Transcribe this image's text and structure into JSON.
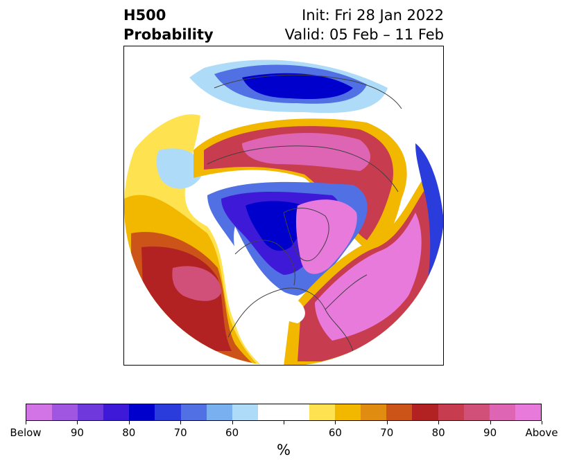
{
  "header": {
    "title_line1": "H500",
    "title_line2": "Probability",
    "init_text": "Init: Fri 28 Jan 2022",
    "valid_text": "Valid: 05 Feb – 11 Feb"
  },
  "map": {
    "projection": "north-polar-stereographic",
    "land_outline_color": "#404040"
  },
  "colorbar": {
    "colors": [
      "#d273e6",
      "#a056e0",
      "#6e38dc",
      "#3e1ad8",
      "#0000cc",
      "#2a3ddc",
      "#5070e4",
      "#78b0f0",
      "#aedcf8",
      "#ffffff",
      "#ffffff",
      "#ffe250",
      "#f2b800",
      "#e08c10",
      "#cc5418",
      "#b22222",
      "#c83c50",
      "#d0507a",
      "#de64b4",
      "#e87adc"
    ],
    "tick_labels": [
      "Below",
      "90",
      "80",
      "70",
      "60",
      "60",
      "70",
      "80",
      "90",
      "Above"
    ],
    "unit_label": "%"
  }
}
